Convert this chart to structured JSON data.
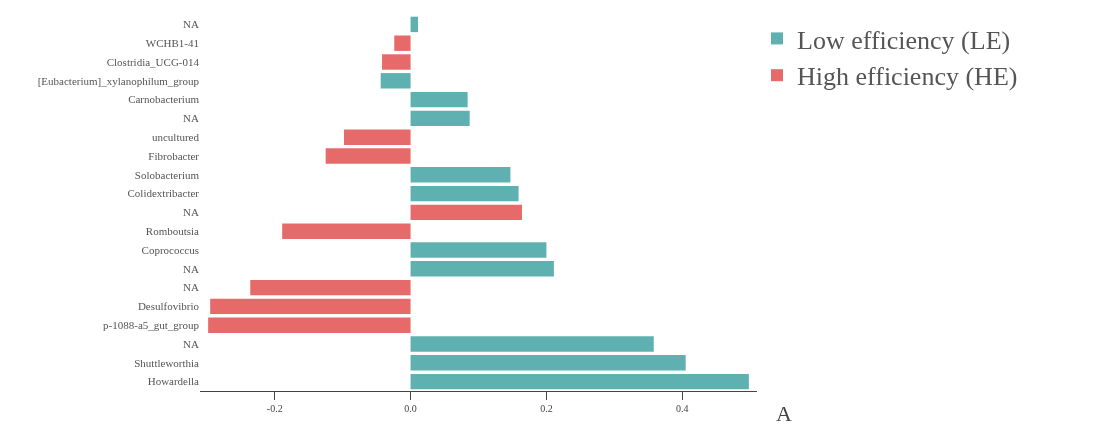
{
  "chart_data": {
    "type": "bar",
    "orientation": "horizontal",
    "categories": [
      "NA",
      "WCHB1-41",
      "Clostridia_UCG-014",
      "[Eubacterium]_xylanophilum_group",
      "Carnobacterium",
      "NA",
      "uncultured",
      "Fibrobacter",
      "Solobacterium",
      "Colidextribacter",
      "NA",
      "Romboutsia",
      "Coprococcus",
      "NA",
      "NA",
      "Desulfovibrio",
      "p-1088-a5_gut_group",
      "NA",
      "Shuttleworthia",
      "Howardella"
    ],
    "series": [
      {
        "name": "Low efficiency (LE)",
        "color": "#5fb0b0",
        "values": [
          0.011,
          null,
          null,
          -0.044,
          0.084,
          0.087,
          null,
          null,
          0.147,
          0.159,
          null,
          null,
          0.2,
          0.211,
          null,
          null,
          null,
          0.358,
          0.405,
          0.498
        ]
      },
      {
        "name": "High efficiency (HE)",
        "color": "#e66a6a",
        "values": [
          null,
          -0.024,
          -0.042,
          null,
          null,
          null,
          -0.098,
          -0.125,
          null,
          null,
          0.164,
          -0.189,
          null,
          null,
          -0.236,
          -0.295,
          -0.298,
          null,
          null,
          null
        ]
      }
    ],
    "xlim": [
      -0.31,
      0.51
    ],
    "xticks": [
      -0.2,
      {
        "value": 0,
        "label": "0.0"
      },
      0.2,
      0.4
    ],
    "legend": "top right",
    "annotations": [
      "A"
    ]
  }
}
